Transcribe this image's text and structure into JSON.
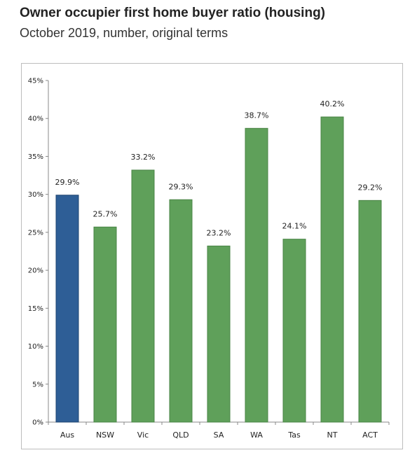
{
  "header": {
    "title": "Owner occupier first home buyer ratio (housing)",
    "subtitle": "October 2019, number, original terms"
  },
  "colors": {
    "highlight_bar": "#2e5e96",
    "bar": "#5fa05a",
    "axis": "#888888",
    "border": "#bdbdbd"
  },
  "chart_data": {
    "type": "bar",
    "categories": [
      "Aus",
      "NSW",
      "Vic",
      "QLD",
      "SA",
      "WA",
      "Tas",
      "NT",
      "ACT"
    ],
    "values": [
      29.9,
      25.7,
      33.2,
      29.3,
      23.2,
      38.7,
      24.1,
      40.2,
      29.2
    ],
    "data_labels": [
      "29.9%",
      "25.7%",
      "33.2%",
      "29.3%",
      "23.2%",
      "38.7%",
      "24.1%",
      "40.2%",
      "29.2%"
    ],
    "highlight_index": 0,
    "ylim": [
      0,
      45
    ],
    "yticks": [
      0,
      5,
      10,
      15,
      20,
      25,
      30,
      35,
      40,
      45
    ],
    "ytick_labels": [
      "0%",
      "5%",
      "10%",
      "15%",
      "20%",
      "25%",
      "30%",
      "35%",
      "40%",
      "45%"
    ],
    "grid": false,
    "legend": "none"
  }
}
